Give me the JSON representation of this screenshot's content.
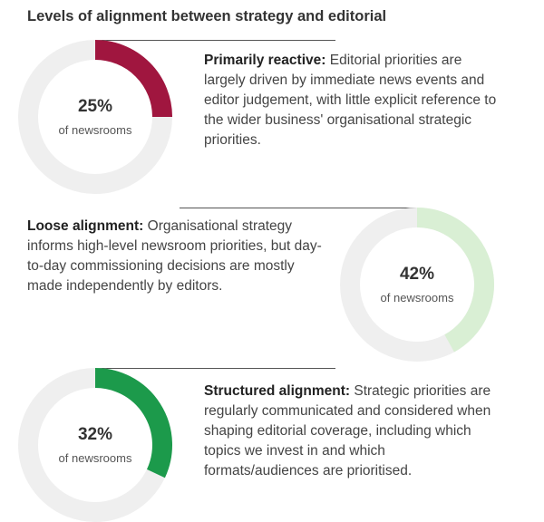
{
  "title": "Levels of alignment between strategy and editorial",
  "colors": {
    "track": "#efefef",
    "reactive": "#a0163f",
    "loose": "#d9efd4",
    "structured": "#1c9a4b"
  },
  "chart_data": [
    {
      "type": "pie",
      "series_key": "reactive",
      "value": 25,
      "value_label": "25%",
      "unit_label": "of newsrooms",
      "heading": "Primarily reactive:",
      "description": "Editorial priorities are largely driven by immediate news events and editor judgement, with little explicit reference to the wider business' organisational strategic priorities."
    },
    {
      "type": "pie",
      "series_key": "loose",
      "value": 42,
      "value_label": "42%",
      "unit_label": "of newsrooms",
      "heading": "Loose alignment:",
      "description": "Organisational strategy informs high-level newsroom priorities, but day-to-day commissioning decisions are mostly made independently by editors."
    },
    {
      "type": "pie",
      "series_key": "structured",
      "value": 32,
      "value_label": "32%",
      "unit_label": "of newsrooms",
      "heading": "Structured alignment:",
      "description": "Strategic priorities are regularly communicated and considered when shaping editorial coverage, including which topics we invest in and which formats/audiences are prioritised."
    }
  ]
}
